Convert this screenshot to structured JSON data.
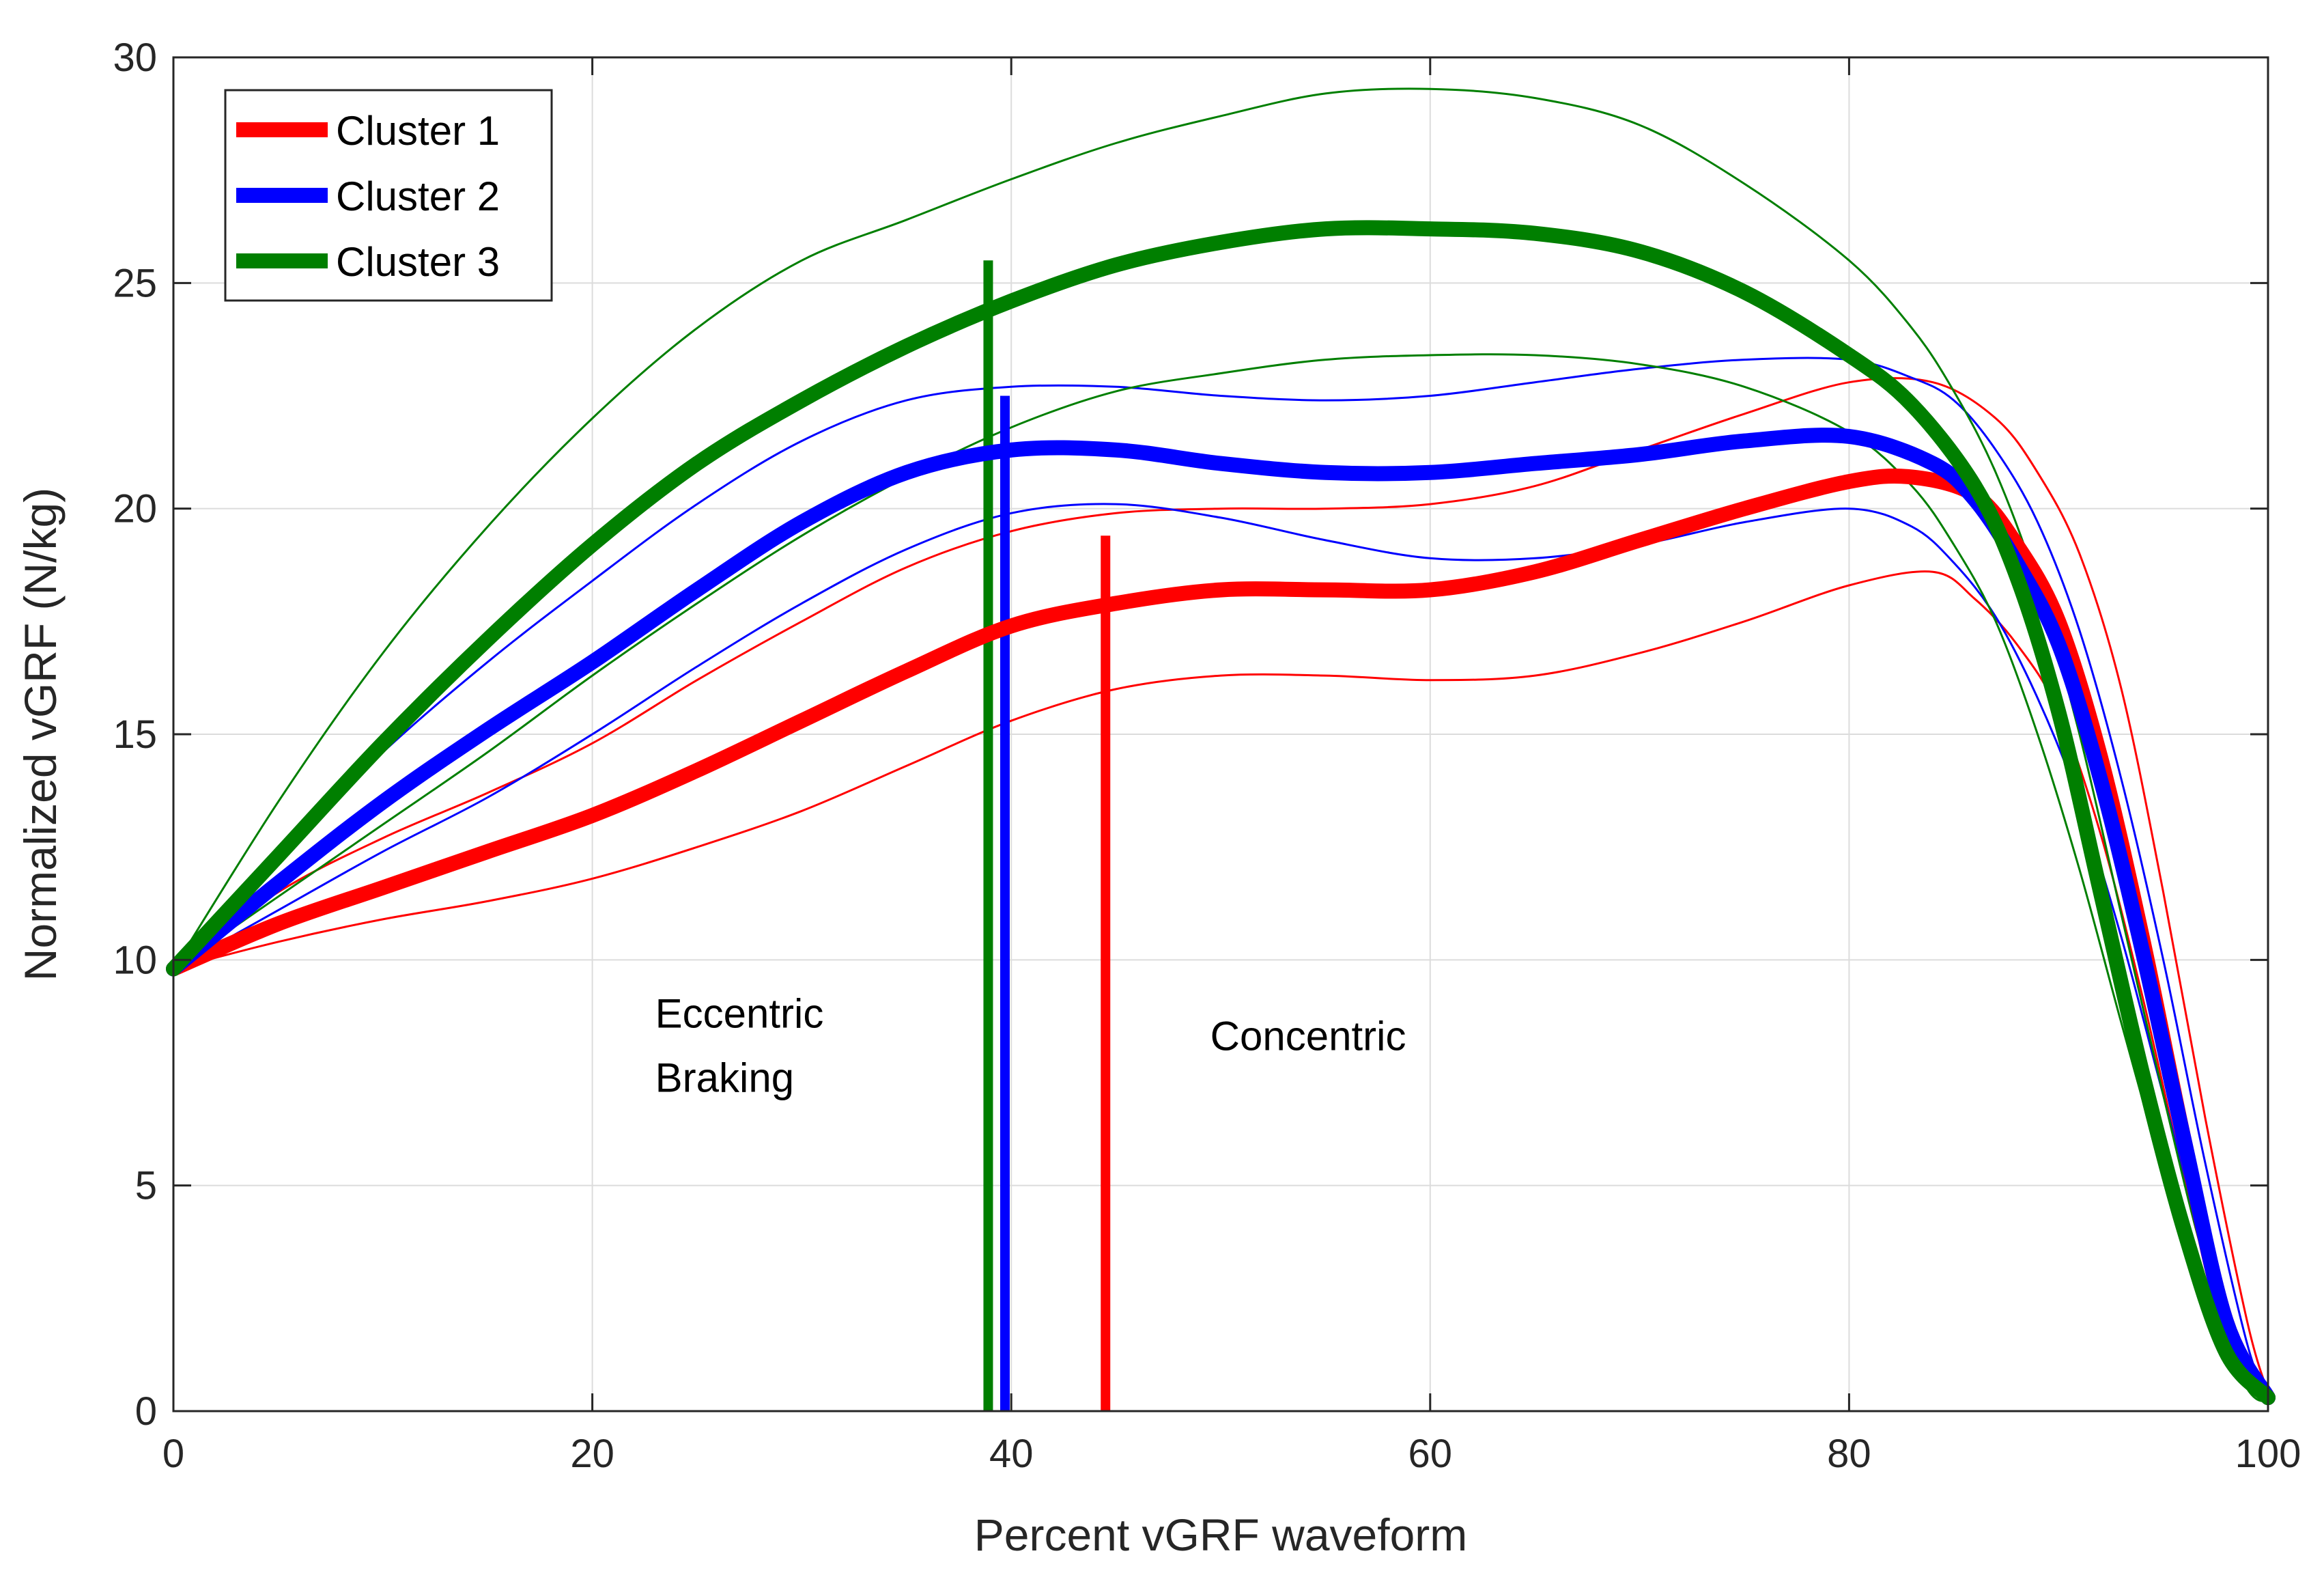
{
  "chart_data": {
    "type": "line",
    "title": "",
    "xlabel": "Percent vGRF waveform",
    "ylabel": "Normalized vGRF (N/kg)",
    "xlim": [
      0,
      100
    ],
    "ylim": [
      0,
      30
    ],
    "xticks": [
      0,
      20,
      40,
      60,
      80,
      100
    ],
    "yticks": [
      0,
      5,
      10,
      15,
      20,
      25,
      30
    ],
    "grid": true,
    "legend_position": "top-left",
    "colors": {
      "cluster1": "#ff0000",
      "cluster2": "#0000ff",
      "cluster3": "#007f00"
    },
    "series": [
      {
        "name": "Cluster 1",
        "color": "#ff0000",
        "role": "mean",
        "x": [
          0,
          5,
          10,
          15,
          20,
          25,
          30,
          35,
          40,
          45,
          50,
          55,
          60,
          65,
          70,
          75,
          80,
          83,
          86,
          88,
          90,
          92,
          94,
          96,
          98,
          100
        ],
        "y": [
          9.8,
          10.8,
          11.6,
          12.4,
          13.2,
          14.2,
          15.3,
          16.4,
          17.4,
          17.9,
          18.2,
          18.2,
          18.2,
          18.6,
          19.3,
          20.0,
          20.6,
          20.7,
          20.3,
          19.2,
          17.5,
          14.5,
          10.5,
          6.0,
          2.0,
          0.3
        ]
      },
      {
        "name": "Cluster 1 upper",
        "color": "#ff0000",
        "role": "bound",
        "x": [
          0,
          5,
          10,
          15,
          20,
          25,
          30,
          35,
          40,
          45,
          50,
          55,
          60,
          65,
          70,
          75,
          80,
          84,
          87,
          89,
          91,
          93,
          95,
          97,
          99,
          100
        ],
        "y": [
          9.8,
          11.5,
          12.7,
          13.7,
          14.8,
          16.2,
          17.5,
          18.7,
          19.5,
          19.9,
          20.0,
          20.0,
          20.1,
          20.5,
          21.3,
          22.1,
          22.8,
          22.8,
          22.0,
          20.8,
          19.0,
          16.0,
          11.5,
          6.5,
          2.0,
          0.4
        ]
      },
      {
        "name": "Cluster 1 lower",
        "color": "#ff0000",
        "role": "bound",
        "x": [
          0,
          5,
          10,
          15,
          20,
          25,
          30,
          35,
          40,
          45,
          50,
          55,
          60,
          65,
          70,
          75,
          80,
          84,
          86,
          88,
          90,
          92,
          94,
          96,
          98,
          100
        ],
        "y": [
          9.8,
          10.4,
          10.9,
          11.3,
          11.8,
          12.5,
          13.3,
          14.3,
          15.3,
          16.0,
          16.3,
          16.3,
          16.2,
          16.3,
          16.8,
          17.5,
          18.3,
          18.6,
          18.0,
          17.0,
          15.5,
          12.8,
          9.2,
          5.2,
          1.8,
          0.2
        ]
      },
      {
        "name": "Cluster 2",
        "color": "#0000ff",
        "role": "mean",
        "x": [
          0,
          5,
          10,
          15,
          20,
          25,
          30,
          35,
          40,
          45,
          50,
          55,
          60,
          65,
          70,
          75,
          80,
          84,
          86,
          88,
          90,
          92,
          94,
          96,
          98,
          100
        ],
        "y": [
          9.8,
          11.7,
          13.5,
          15.1,
          16.6,
          18.2,
          19.7,
          20.8,
          21.3,
          21.3,
          21.0,
          20.8,
          20.8,
          21.0,
          21.2,
          21.5,
          21.6,
          21.0,
          20.2,
          18.8,
          17.0,
          14.0,
          10.2,
          6.0,
          2.0,
          0.3
        ]
      },
      {
        "name": "Cluster 2 upper",
        "color": "#0000ff",
        "role": "bound",
        "x": [
          0,
          5,
          10,
          15,
          20,
          25,
          30,
          35,
          40,
          45,
          50,
          55,
          60,
          65,
          70,
          75,
          80,
          83,
          85,
          87,
          89,
          91,
          93,
          95,
          97,
          99,
          100
        ],
        "y": [
          9.8,
          12.3,
          14.6,
          16.6,
          18.4,
          20.1,
          21.5,
          22.4,
          22.7,
          22.7,
          22.5,
          22.4,
          22.5,
          22.8,
          23.1,
          23.3,
          23.3,
          22.9,
          22.4,
          21.3,
          19.7,
          17.3,
          14.0,
          10.0,
          5.5,
          1.5,
          0.3
        ]
      },
      {
        "name": "Cluster 2 lower",
        "color": "#0000ff",
        "role": "bound",
        "x": [
          0,
          5,
          10,
          15,
          20,
          25,
          30,
          35,
          40,
          45,
          50,
          55,
          60,
          65,
          70,
          75,
          80,
          83,
          85,
          87,
          89,
          91,
          93,
          95,
          97,
          99,
          100
        ],
        "y": [
          9.8,
          11.1,
          12.4,
          13.6,
          15.0,
          16.5,
          17.9,
          19.1,
          19.9,
          20.1,
          19.8,
          19.3,
          18.9,
          18.9,
          19.2,
          19.7,
          20.0,
          19.6,
          18.8,
          17.6,
          15.8,
          13.5,
          10.5,
          7.0,
          3.6,
          0.8,
          0.2
        ]
      },
      {
        "name": "Cluster 3",
        "color": "#007f00",
        "role": "mean",
        "x": [
          0,
          5,
          10,
          15,
          20,
          25,
          30,
          35,
          40,
          45,
          50,
          55,
          60,
          65,
          70,
          75,
          80,
          83,
          86,
          88,
          90,
          92,
          94,
          96,
          98,
          100
        ],
        "y": [
          9.8,
          12.3,
          14.8,
          17.1,
          19.2,
          21.0,
          22.4,
          23.6,
          24.6,
          25.4,
          25.9,
          26.2,
          26.2,
          26.1,
          25.7,
          24.8,
          23.4,
          22.3,
          20.5,
          18.5,
          15.5,
          11.5,
          7.5,
          4.0,
          1.3,
          0.3
        ]
      },
      {
        "name": "Cluster 3 upper",
        "color": "#007f00",
        "role": "bound",
        "x": [
          0,
          5,
          10,
          15,
          20,
          25,
          30,
          35,
          40,
          45,
          50,
          55,
          60,
          65,
          70,
          75,
          80,
          83,
          85,
          87,
          89,
          91,
          93,
          95,
          97,
          99,
          100
        ],
        "y": [
          9.8,
          13.5,
          16.8,
          19.6,
          22.0,
          24.0,
          25.5,
          26.4,
          27.3,
          28.1,
          28.7,
          29.2,
          29.3,
          29.1,
          28.5,
          27.2,
          25.5,
          24.0,
          22.6,
          20.8,
          18.3,
          15.0,
          11.0,
          7.0,
          3.3,
          0.8,
          0.3
        ]
      },
      {
        "name": "Cluster 3 lower",
        "color": "#007f00",
        "role": "bound",
        "x": [
          0,
          5,
          10,
          15,
          20,
          25,
          30,
          35,
          40,
          45,
          50,
          55,
          60,
          65,
          70,
          75,
          80,
          83,
          85,
          87,
          89,
          91,
          93,
          95,
          97,
          99,
          100
        ],
        "y": [
          9.8,
          11.4,
          13.0,
          14.6,
          16.3,
          17.9,
          19.4,
          20.7,
          21.8,
          22.6,
          23.0,
          23.3,
          23.4,
          23.4,
          23.2,
          22.7,
          21.7,
          20.5,
          19.2,
          17.5,
          15.0,
          12.0,
          8.6,
          5.3,
          2.4,
          0.5,
          0.2
        ]
      }
    ],
    "phase_markers": [
      {
        "series": "Cluster 3",
        "color": "#007f00",
        "x": 38.9,
        "y_top": 25.5
      },
      {
        "series": "Cluster 2",
        "color": "#0000ff",
        "x": 39.7,
        "y_top": 22.5
      },
      {
        "series": "Cluster 1",
        "color": "#ff0000",
        "x": 44.5,
        "y_top": 19.4
      }
    ],
    "annotations": [
      {
        "id": "eccentric",
        "lines": [
          "Eccentric",
          "Braking"
        ],
        "x": 23,
        "y": 8.5
      },
      {
        "id": "concentric",
        "lines": [
          "Concentric"
        ],
        "x": 49.5,
        "y": 8.0
      }
    ],
    "legend": [
      "Cluster 1",
      "Cluster 2",
      "Cluster 3"
    ]
  }
}
